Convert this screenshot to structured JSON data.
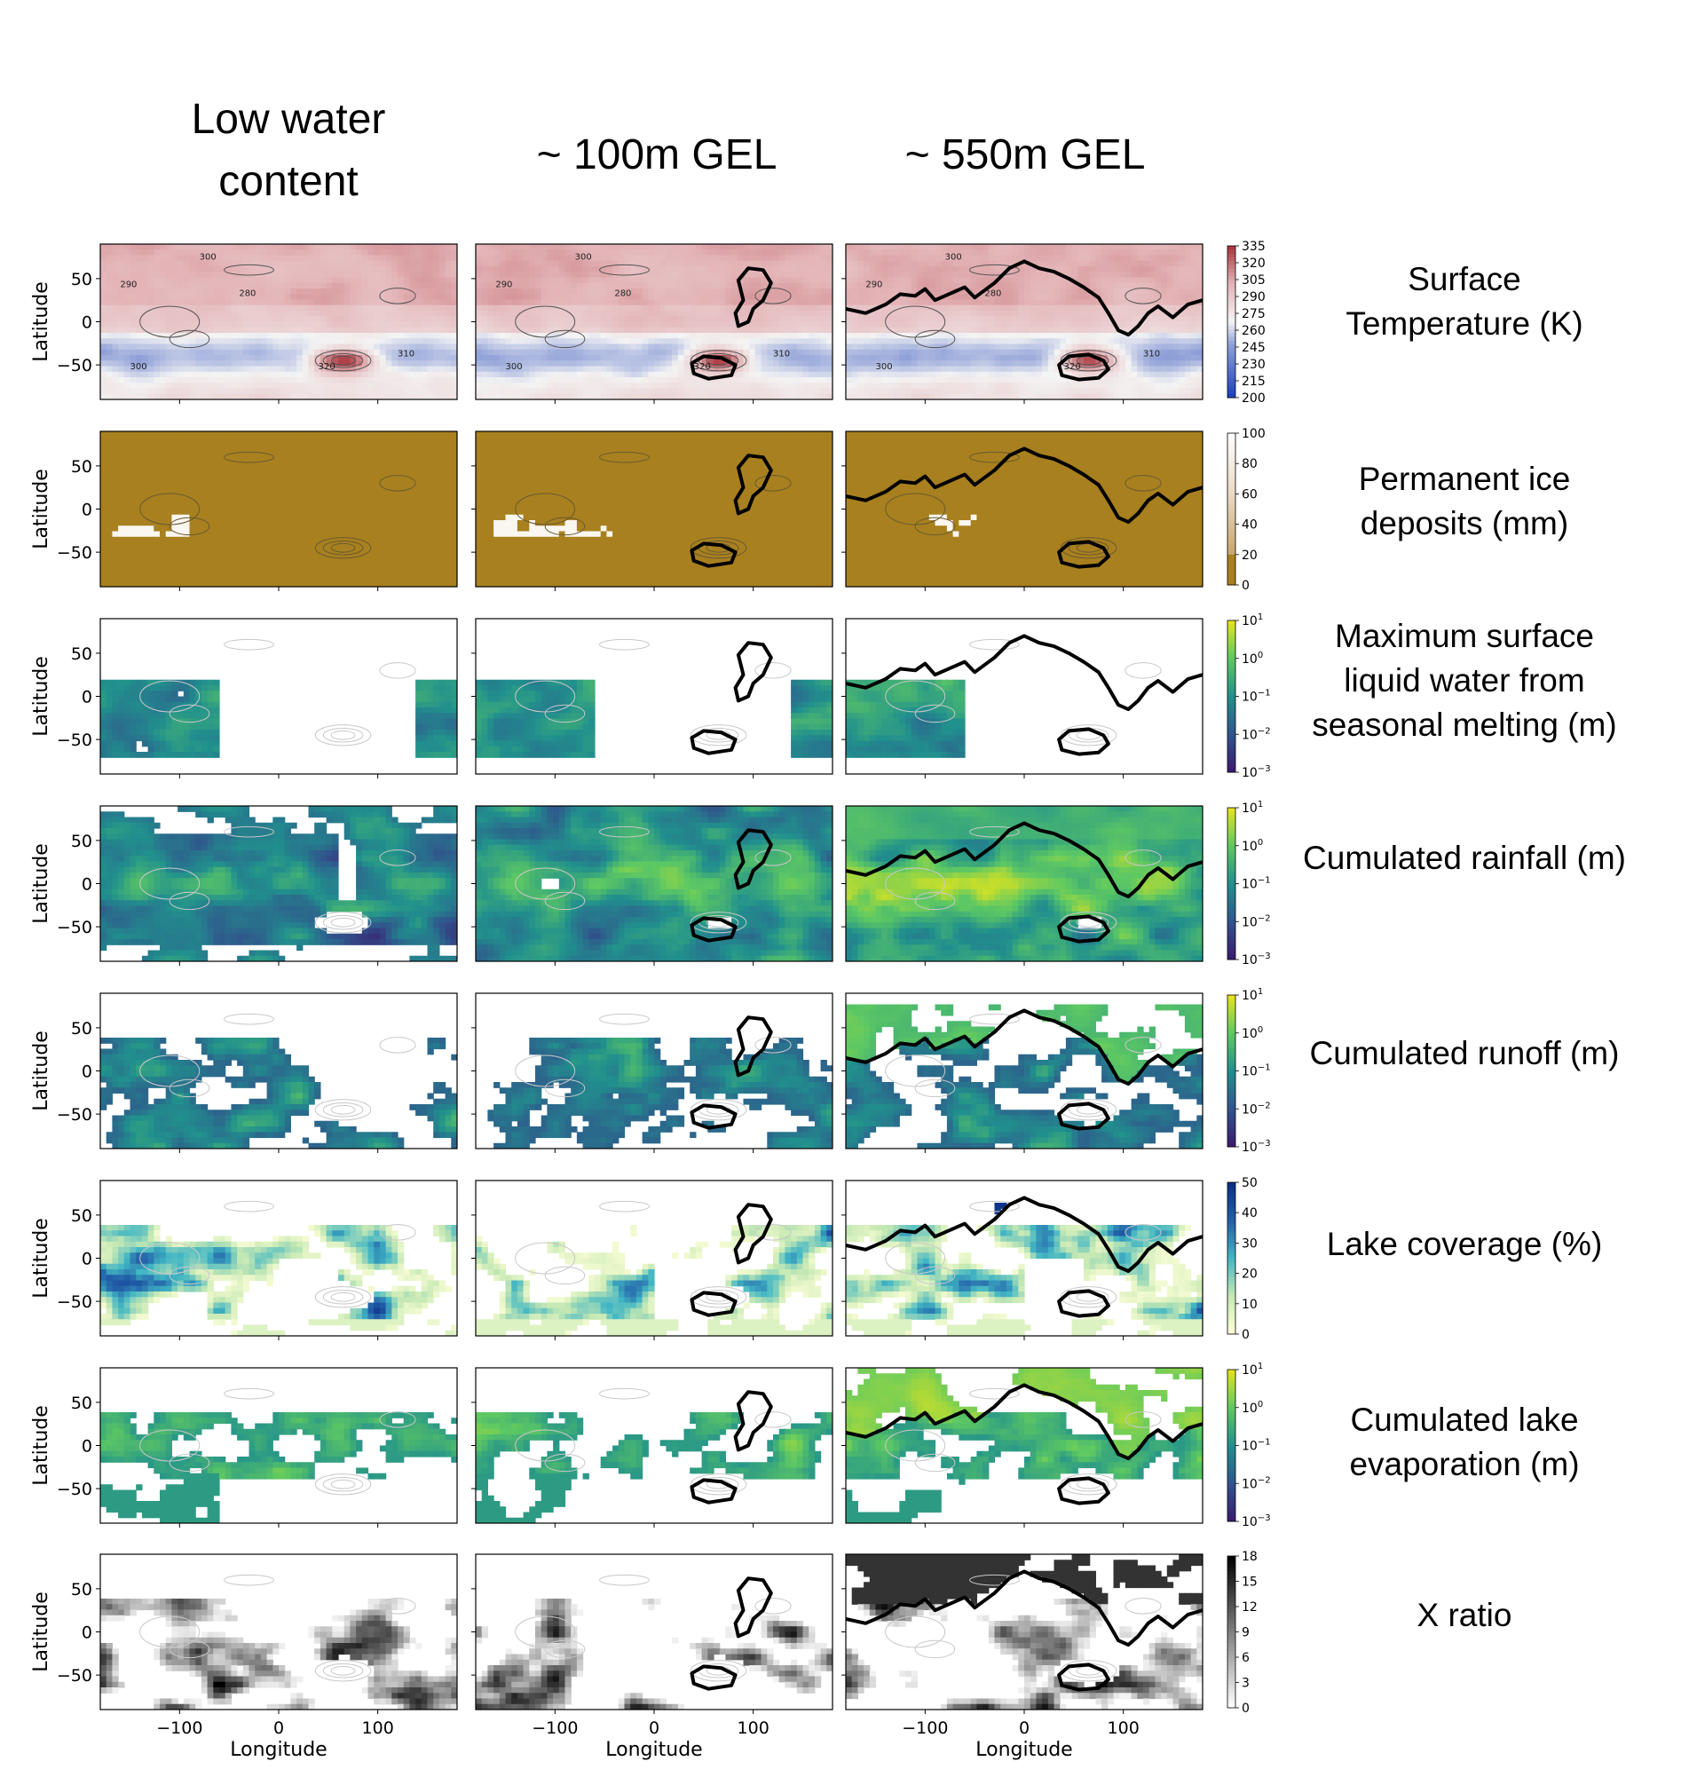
{
  "chart_data": {
    "type": "heatmap",
    "title": "",
    "xlabel": "Longitude",
    "ylabel": "Latitude",
    "xlim": [
      -180,
      180
    ],
    "ylim": [
      -90,
      90
    ],
    "xticks": [
      -100,
      0,
      100
    ],
    "xtick_labels": [
      "−100",
      "0",
      "100"
    ],
    "yticks": [
      50,
      0,
      -50
    ],
    "ytick_labels": [
      "50",
      "0",
      "−50"
    ],
    "columns": [
      "Low water content",
      "~ 100m GEL",
      "~ 550m GEL"
    ],
    "rows": [
      {
        "name": "Surface Temperature (K)",
        "colorbar_ticks": [
          "335",
          "320",
          "305",
          "290",
          "275",
          "260",
          "245",
          "230",
          "215",
          "200"
        ],
        "contour_labels": [
          "300",
          "290",
          "280",
          "310",
          "320"
        ],
        "colors": {
          "low": "#1b3fbf",
          "mid": "#f4f4f4",
          "high": "#a8323a"
        }
      },
      {
        "name": "Permanent ice deposits (mm)",
        "colorbar_ticks": [
          "100",
          "80",
          "60",
          "40",
          "20",
          "0"
        ],
        "colors": {
          "low": "#a8801f",
          "high": "#ffffff"
        }
      },
      {
        "name": "Maximum surface liquid water from seasonal melting (m)",
        "colorbar_ticks": [
          "10^1",
          "10^0",
          "10^-1",
          "10^-2",
          "10^-3"
        ],
        "colors": {
          "low": "#3b1a6e",
          "high": "#e8e51a"
        }
      },
      {
        "name": "Cumulated rainfall (m)",
        "colorbar_ticks": [
          "10^1",
          "10^0",
          "10^-1",
          "10^-2",
          "10^-3"
        ],
        "colors": {
          "low": "#3b1a6e",
          "high": "#e8e51a"
        }
      },
      {
        "name": "Cumulated runoff (m)",
        "colorbar_ticks": [
          "10^1",
          "10^0",
          "10^-1",
          "10^-2",
          "10^-3"
        ],
        "colors": {
          "low": "#3b1a6e",
          "high": "#e8e51a"
        }
      },
      {
        "name": "Lake coverage (%)",
        "colorbar_ticks": [
          "50",
          "40",
          "30",
          "20",
          "10",
          "0"
        ],
        "colors": {
          "low": "#ffffd9",
          "high": "#0c2c84"
        }
      },
      {
        "name": "Cumulated lake evaporation (m)",
        "colorbar_ticks": [
          "10^1",
          "10^0",
          "10^-1",
          "10^-2",
          "10^-3"
        ],
        "colors": {
          "low": "#3b1a6e",
          "high": "#e8e51a"
        }
      },
      {
        "name": "X ratio",
        "colorbar_ticks": [
          "18",
          "15",
          "12",
          "9",
          "6",
          "3",
          "0"
        ],
        "colors": {
          "low": "#000000",
          "high": "#ffffff"
        }
      }
    ]
  },
  "headers": {
    "col1_line1": "Low water",
    "col1_line2": "content",
    "col2": "~ 100m GEL",
    "col3": "~ 550m GEL"
  },
  "labels": {
    "row1_line1": "Surface",
    "row1_line2": "Temperature (K)",
    "row2_line1": "Permanent ice",
    "row2_line2": "deposits (mm)",
    "row3_line1": "Maximum surface",
    "row3_line2": "liquid water from",
    "row3_line3": "seasonal melting (m)",
    "row4_line1": "Cumulated rainfall (m)",
    "row5_line1": "Cumulated runoff (m)",
    "row6_line1": "Lake coverage (%)",
    "row7_line1": "Cumulated lake",
    "row7_line2": "evaporation (m)",
    "row8_line1": "X ratio"
  }
}
